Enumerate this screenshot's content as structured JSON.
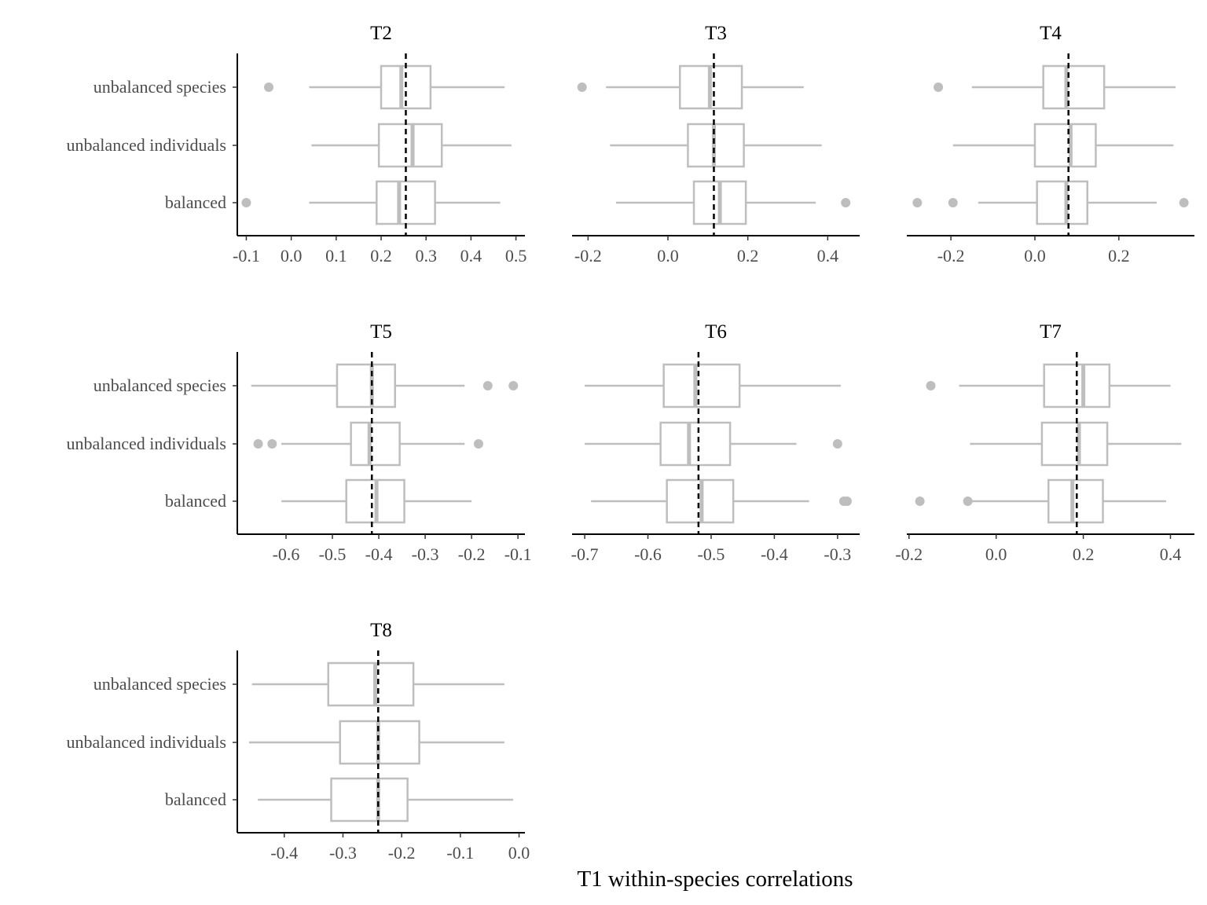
{
  "chart_data": {
    "type": "boxplot",
    "xlabel": "T1 within-species correlations",
    "categories": [
      "unbalanced species",
      "unbalanced individuals",
      "balanced"
    ],
    "colors": {
      "box": "#bebebe",
      "reference_line": "#000000",
      "axis": "#000000"
    },
    "panels": [
      {
        "title": "T2",
        "xlim": [
          -0.12,
          0.52
        ],
        "ticks": [
          -0.1,
          0.0,
          0.1,
          0.2,
          0.3,
          0.4,
          0.5
        ],
        "tick_labels": [
          "-0.1",
          "0.0",
          "0.1",
          "0.2",
          "0.3",
          "0.4",
          "0.5"
        ],
        "reference": 0.255,
        "boxes": [
          {
            "category": "unbalanced species",
            "min": 0.04,
            "q1": 0.2,
            "median": 0.245,
            "q3": 0.31,
            "max": 0.475,
            "outliers": [
              -0.05
            ]
          },
          {
            "category": "unbalanced individuals",
            "min": 0.045,
            "q1": 0.195,
            "median": 0.27,
            "q3": 0.335,
            "max": 0.49,
            "outliers": []
          },
          {
            "category": "balanced",
            "min": 0.04,
            "q1": 0.19,
            "median": 0.24,
            "q3": 0.32,
            "max": 0.465,
            "outliers": [
              -0.1
            ]
          }
        ]
      },
      {
        "title": "T3",
        "xlim": [
          -0.24,
          0.48
        ],
        "ticks": [
          -0.2,
          0.0,
          0.2,
          0.4
        ],
        "tick_labels": [
          "-0.2",
          "0.0",
          "0.2",
          "0.4"
        ],
        "reference": 0.115,
        "boxes": [
          {
            "category": "unbalanced species",
            "min": -0.155,
            "q1": 0.03,
            "median": 0.105,
            "q3": 0.185,
            "max": 0.34,
            "outliers": [
              -0.215
            ]
          },
          {
            "category": "unbalanced individuals",
            "min": -0.145,
            "q1": 0.05,
            "median": 0.115,
            "q3": 0.19,
            "max": 0.385,
            "outliers": []
          },
          {
            "category": "balanced",
            "min": -0.13,
            "q1": 0.065,
            "median": 0.13,
            "q3": 0.195,
            "max": 0.37,
            "outliers": [
              0.445
            ]
          }
        ]
      },
      {
        "title": "T4",
        "xlim": [
          -0.305,
          0.38
        ],
        "ticks": [
          -0.2,
          0.0,
          0.2
        ],
        "tick_labels": [
          "-0.2",
          "0.0",
          "0.2"
        ],
        "reference": 0.08,
        "boxes": [
          {
            "category": "unbalanced species",
            "min": -0.15,
            "q1": 0.02,
            "median": 0.075,
            "q3": 0.165,
            "max": 0.335,
            "outliers": [
              -0.23
            ]
          },
          {
            "category": "unbalanced individuals",
            "min": -0.195,
            "q1": 0.0,
            "median": 0.085,
            "q3": 0.145,
            "max": 0.33,
            "outliers": []
          },
          {
            "category": "balanced",
            "min": -0.135,
            "q1": 0.005,
            "median": 0.075,
            "q3": 0.125,
            "max": 0.29,
            "outliers": [
              -0.28,
              -0.195,
              0.355
            ]
          }
        ]
      },
      {
        "title": "T5",
        "xlim": [
          -0.705,
          -0.085
        ],
        "ticks": [
          -0.6,
          -0.5,
          -0.4,
          -0.3,
          -0.2,
          -0.1
        ],
        "tick_labels": [
          "-0.6",
          "-0.5",
          "-0.4",
          "-0.3",
          "-0.2",
          "-0.1"
        ],
        "reference": -0.415,
        "boxes": [
          {
            "category": "unbalanced species",
            "min": -0.675,
            "q1": -0.49,
            "median": -0.415,
            "q3": -0.365,
            "max": -0.215,
            "outliers": [
              -0.165,
              -0.11
            ]
          },
          {
            "category": "unbalanced individuals",
            "min": -0.61,
            "q1": -0.46,
            "median": -0.42,
            "q3": -0.355,
            "max": -0.215,
            "outliers": [
              -0.66,
              -0.63,
              -0.185
            ]
          },
          {
            "category": "balanced",
            "min": -0.61,
            "q1": -0.47,
            "median": -0.405,
            "q3": -0.345,
            "max": -0.2,
            "outliers": []
          }
        ]
      },
      {
        "title": "T6",
        "xlim": [
          -0.72,
          -0.265
        ],
        "ticks": [
          -0.7,
          -0.6,
          -0.5,
          -0.4,
          -0.3
        ],
        "tick_labels": [
          "-0.7",
          "-0.6",
          "-0.5",
          "-0.4",
          "-0.3"
        ],
        "reference": -0.52,
        "boxes": [
          {
            "category": "unbalanced species",
            "min": -0.7,
            "q1": -0.575,
            "median": -0.525,
            "q3": -0.455,
            "max": -0.295,
            "outliers": []
          },
          {
            "category": "unbalanced individuals",
            "min": -0.7,
            "q1": -0.58,
            "median": -0.535,
            "q3": -0.47,
            "max": -0.365,
            "outliers": [
              -0.3
            ]
          },
          {
            "category": "balanced",
            "min": -0.69,
            "q1": -0.57,
            "median": -0.515,
            "q3": -0.465,
            "max": -0.345,
            "outliers": [
              -0.29,
              -0.285
            ]
          }
        ]
      },
      {
        "title": "T7",
        "xlim": [
          -0.205,
          0.455
        ],
        "ticks": [
          -0.2,
          0.0,
          0.2,
          0.4
        ],
        "tick_labels": [
          "-0.2",
          "0.0",
          "0.2",
          "0.4"
        ],
        "reference": 0.185,
        "boxes": [
          {
            "category": "unbalanced species",
            "min": -0.085,
            "q1": 0.11,
            "median": 0.2,
            "q3": 0.26,
            "max": 0.4,
            "outliers": [
              -0.15
            ]
          },
          {
            "category": "unbalanced individuals",
            "min": -0.06,
            "q1": 0.105,
            "median": 0.19,
            "q3": 0.255,
            "max": 0.425,
            "outliers": []
          },
          {
            "category": "balanced",
            "min": -0.065,
            "q1": 0.12,
            "median": 0.175,
            "q3": 0.245,
            "max": 0.39,
            "outliers": [
              -0.175,
              -0.065
            ]
          }
        ]
      },
      {
        "title": "T8",
        "xlim": [
          -0.48,
          0.01
        ],
        "ticks": [
          -0.4,
          -0.3,
          -0.2,
          -0.1,
          0.0
        ],
        "tick_labels": [
          "-0.4",
          "-0.3",
          "-0.2",
          "-0.1",
          "0.0"
        ],
        "reference": -0.24,
        "boxes": [
          {
            "category": "unbalanced species",
            "min": -0.455,
            "q1": -0.325,
            "median": -0.245,
            "q3": -0.18,
            "max": -0.025,
            "outliers": []
          },
          {
            "category": "unbalanced individuals",
            "min": -0.46,
            "q1": -0.305,
            "median": -0.24,
            "q3": -0.17,
            "max": -0.025,
            "outliers": []
          },
          {
            "category": "balanced",
            "min": -0.445,
            "q1": -0.32,
            "median": -0.24,
            "q3": -0.19,
            "max": -0.01,
            "outliers": []
          }
        ]
      }
    ]
  }
}
